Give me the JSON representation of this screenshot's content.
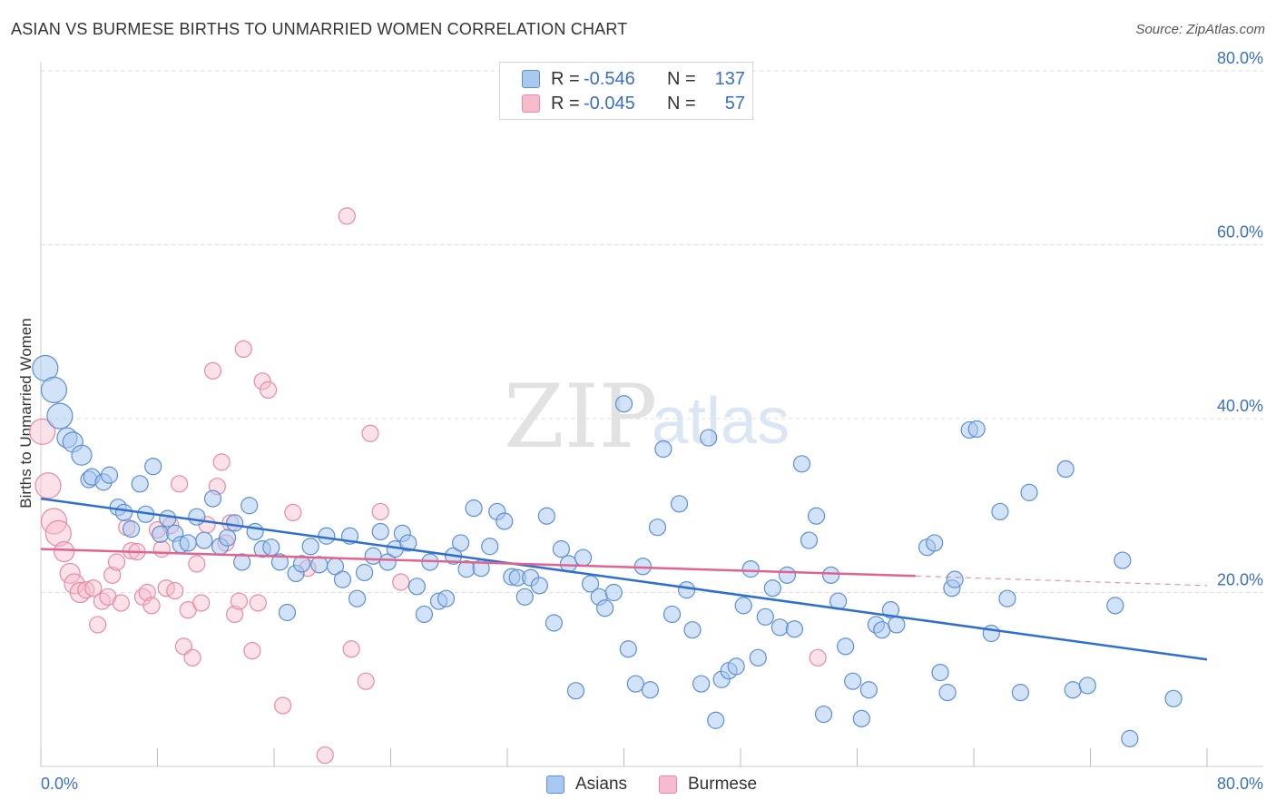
{
  "title": "ASIAN VS BURMESE BIRTHS TO UNMARRIED WOMEN CORRELATION CHART",
  "source": "Source: ZipAtlas.com",
  "watermark": {
    "zip": "ZIP",
    "atlas": "atlas"
  },
  "legend": {
    "series1": {
      "r_label": "R =",
      "r_value": "-0.546",
      "n_label": "N =",
      "n_value": "137"
    },
    "series2": {
      "r_label": "R =",
      "r_value": "-0.045",
      "n_label": "N =",
      "n_value": "57"
    }
  },
  "bottom_legend": {
    "series1": "Asians",
    "series2": "Burmese"
  },
  "colors": {
    "asian_fill": "#a8c8f0",
    "asian_stroke": "#5b8fd6",
    "asian_line": "#2e6fd0",
    "burmese_fill": "#f6bccb",
    "burmese_stroke": "#e88aa6",
    "burmese_line": "#e0648f",
    "tick_text": "#3a6fc4",
    "grid": "#dddddd"
  },
  "chart_data": {
    "type": "scatter",
    "title": "ASIAN VS BURMESE BIRTHS TO UNMARRIED WOMEN CORRELATION CHART",
    "xlabel": "",
    "ylabel": "Births to Unmarried Women",
    "xlim": [
      0,
      80
    ],
    "ylim": [
      0,
      80
    ],
    "x_tick_labels": [
      "0.0%",
      "80.0%"
    ],
    "y_tick_labels": [
      "20.0%",
      "40.0%",
      "60.0%",
      "80.0%"
    ],
    "y_ticks": [
      20,
      40,
      60,
      80
    ],
    "grid": true,
    "series": [
      {
        "name": "Asians",
        "r": -0.546,
        "n": 137,
        "trend": {
          "x": [
            0,
            80
          ],
          "y": [
            30.8,
            12.3
          ]
        },
        "points": [
          [
            0.3,
            45.8
          ],
          [
            0.9,
            43.3
          ],
          [
            1.3,
            40.3
          ],
          [
            1.8,
            37.8
          ],
          [
            2.2,
            37.3
          ],
          [
            2.8,
            35.8
          ],
          [
            3.3,
            33.0
          ],
          [
            3.5,
            33.3
          ],
          [
            4.3,
            32.7
          ],
          [
            4.7,
            33.5
          ],
          [
            5.3,
            29.8
          ],
          [
            5.7,
            29.2
          ],
          [
            6.2,
            27.3
          ],
          [
            6.8,
            32.5
          ],
          [
            7.2,
            29.0
          ],
          [
            7.7,
            34.5
          ],
          [
            8.2,
            26.7
          ],
          [
            8.7,
            28.5
          ],
          [
            9.2,
            26.8
          ],
          [
            9.6,
            25.5
          ],
          [
            10.1,
            25.7
          ],
          [
            10.7,
            28.7
          ],
          [
            11.2,
            26.0
          ],
          [
            11.8,
            30.8
          ],
          [
            12.3,
            25.3
          ],
          [
            12.8,
            26.3
          ],
          [
            13.3,
            28.0
          ],
          [
            13.8,
            23.5
          ],
          [
            14.3,
            30.0
          ],
          [
            14.7,
            27.0
          ],
          [
            15.2,
            25.0
          ],
          [
            15.8,
            25.2
          ],
          [
            16.4,
            23.5
          ],
          [
            16.9,
            17.7
          ],
          [
            17.5,
            22.2
          ],
          [
            17.9,
            23.3
          ],
          [
            18.5,
            25.3
          ],
          [
            19.1,
            23.2
          ],
          [
            19.6,
            26.5
          ],
          [
            20.2,
            23.0
          ],
          [
            20.7,
            21.5
          ],
          [
            21.2,
            26.5
          ],
          [
            21.7,
            19.3
          ],
          [
            22.2,
            22.3
          ],
          [
            22.8,
            24.2
          ],
          [
            23.3,
            27.0
          ],
          [
            23.8,
            23.5
          ],
          [
            24.3,
            25.0
          ],
          [
            24.8,
            26.8
          ],
          [
            25.2,
            25.7
          ],
          [
            25.8,
            20.7
          ],
          [
            26.3,
            17.5
          ],
          [
            26.7,
            23.5
          ],
          [
            27.3,
            19.0
          ],
          [
            27.8,
            19.3
          ],
          [
            28.3,
            24.2
          ],
          [
            28.8,
            25.7
          ],
          [
            29.2,
            22.7
          ],
          [
            29.7,
            29.7
          ],
          [
            30.2,
            22.8
          ],
          [
            30.8,
            25.3
          ],
          [
            31.3,
            29.3
          ],
          [
            31.8,
            28.2
          ],
          [
            32.3,
            21.8
          ],
          [
            32.7,
            21.7
          ],
          [
            33.2,
            19.5
          ],
          [
            33.6,
            21.7
          ],
          [
            34.2,
            20.8
          ],
          [
            34.7,
            28.8
          ],
          [
            35.2,
            16.5
          ],
          [
            35.7,
            25.0
          ],
          [
            36.2,
            23.3
          ],
          [
            36.7,
            8.7
          ],
          [
            37.2,
            24.0
          ],
          [
            37.7,
            21.0
          ],
          [
            38.3,
            19.5
          ],
          [
            38.7,
            18.2
          ],
          [
            39.3,
            20.0
          ],
          [
            40.0,
            41.7
          ],
          [
            40.3,
            13.5
          ],
          [
            40.8,
            9.5
          ],
          [
            41.3,
            23.0
          ],
          [
            41.8,
            8.8
          ],
          [
            42.3,
            27.5
          ],
          [
            42.7,
            36.5
          ],
          [
            43.3,
            17.5
          ],
          [
            43.8,
            30.2
          ],
          [
            44.3,
            20.3
          ],
          [
            44.7,
            15.7
          ],
          [
            45.3,
            9.5
          ],
          [
            45.8,
            37.8
          ],
          [
            46.3,
            5.3
          ],
          [
            46.7,
            10.0
          ],
          [
            47.2,
            11.0
          ],
          [
            47.7,
            11.5
          ],
          [
            48.2,
            18.5
          ],
          [
            48.7,
            22.7
          ],
          [
            49.2,
            12.5
          ],
          [
            49.7,
            17.2
          ],
          [
            50.2,
            20.5
          ],
          [
            50.7,
            16.0
          ],
          [
            51.2,
            22.0
          ],
          [
            51.7,
            15.8
          ],
          [
            52.2,
            34.8
          ],
          [
            52.7,
            26.0
          ],
          [
            53.2,
            28.8
          ],
          [
            53.7,
            6.0
          ],
          [
            54.2,
            22.0
          ],
          [
            54.7,
            19.0
          ],
          [
            55.2,
            13.8
          ],
          [
            55.7,
            9.8
          ],
          [
            56.3,
            5.5
          ],
          [
            56.8,
            8.8
          ],
          [
            57.3,
            16.3
          ],
          [
            57.7,
            15.7
          ],
          [
            58.3,
            18.0
          ],
          [
            58.7,
            16.3
          ],
          [
            60.8,
            25.2
          ],
          [
            61.3,
            25.7
          ],
          [
            61.7,
            10.8
          ],
          [
            62.2,
            8.5
          ],
          [
            62.5,
            20.5
          ],
          [
            62.7,
            21.5
          ],
          [
            63.7,
            38.7
          ],
          [
            64.2,
            38.8
          ],
          [
            65.2,
            15.3
          ],
          [
            65.8,
            29.3
          ],
          [
            66.3,
            19.3
          ],
          [
            67.2,
            8.5
          ],
          [
            67.8,
            31.5
          ],
          [
            70.3,
            34.2
          ],
          [
            70.8,
            8.8
          ],
          [
            71.8,
            9.3
          ],
          [
            73.7,
            18.5
          ],
          [
            74.2,
            23.7
          ],
          [
            74.7,
            3.2
          ],
          [
            77.7,
            7.8
          ]
        ]
      },
      {
        "name": "Burmese",
        "r": -0.045,
        "n": 57,
        "trend": {
          "x": [
            0,
            60
          ],
          "y": [
            25.0,
            21.9
          ]
        },
        "trend_dashed": {
          "x": [
            60,
            80
          ],
          "y": [
            21.9,
            20.8
          ]
        },
        "points": [
          [
            0.1,
            38.5
          ],
          [
            0.5,
            32.3
          ],
          [
            0.9,
            28.2
          ],
          [
            1.2,
            26.8
          ],
          [
            1.6,
            24.7
          ],
          [
            2.0,
            22.2
          ],
          [
            2.3,
            21.0
          ],
          [
            2.7,
            20.0
          ],
          [
            3.1,
            20.3
          ],
          [
            3.6,
            20.5
          ],
          [
            3.9,
            16.3
          ],
          [
            4.2,
            19.0
          ],
          [
            4.6,
            19.5
          ],
          [
            4.9,
            22.0
          ],
          [
            5.2,
            23.5
          ],
          [
            5.5,
            18.8
          ],
          [
            5.9,
            27.5
          ],
          [
            6.2,
            24.8
          ],
          [
            6.6,
            24.7
          ],
          [
            7.0,
            19.5
          ],
          [
            7.3,
            20.0
          ],
          [
            7.6,
            18.5
          ],
          [
            8.0,
            27.2
          ],
          [
            8.3,
            25.0
          ],
          [
            8.6,
            20.5
          ],
          [
            8.9,
            27.7
          ],
          [
            9.2,
            20.2
          ],
          [
            9.5,
            32.5
          ],
          [
            9.8,
            13.8
          ],
          [
            10.1,
            18.0
          ],
          [
            10.4,
            12.5
          ],
          [
            10.7,
            23.3
          ],
          [
            11.0,
            18.8
          ],
          [
            11.4,
            27.8
          ],
          [
            11.8,
            45.5
          ],
          [
            12.1,
            32.2
          ],
          [
            12.4,
            35.0
          ],
          [
            12.7,
            25.7
          ],
          [
            13.0,
            28.0
          ],
          [
            13.3,
            17.5
          ],
          [
            13.6,
            19.0
          ],
          [
            13.9,
            48.0
          ],
          [
            14.5,
            13.3
          ],
          [
            14.9,
            18.8
          ],
          [
            15.2,
            44.3
          ],
          [
            15.6,
            43.3
          ],
          [
            16.6,
            7.0
          ],
          [
            17.3,
            29.2
          ],
          [
            18.3,
            22.8
          ],
          [
            19.5,
            1.3
          ],
          [
            21.0,
            63.3
          ],
          [
            21.3,
            13.5
          ],
          [
            22.3,
            9.8
          ],
          [
            22.6,
            38.3
          ],
          [
            23.3,
            29.3
          ],
          [
            24.7,
            21.2
          ],
          [
            53.3,
            12.5
          ]
        ]
      }
    ]
  }
}
